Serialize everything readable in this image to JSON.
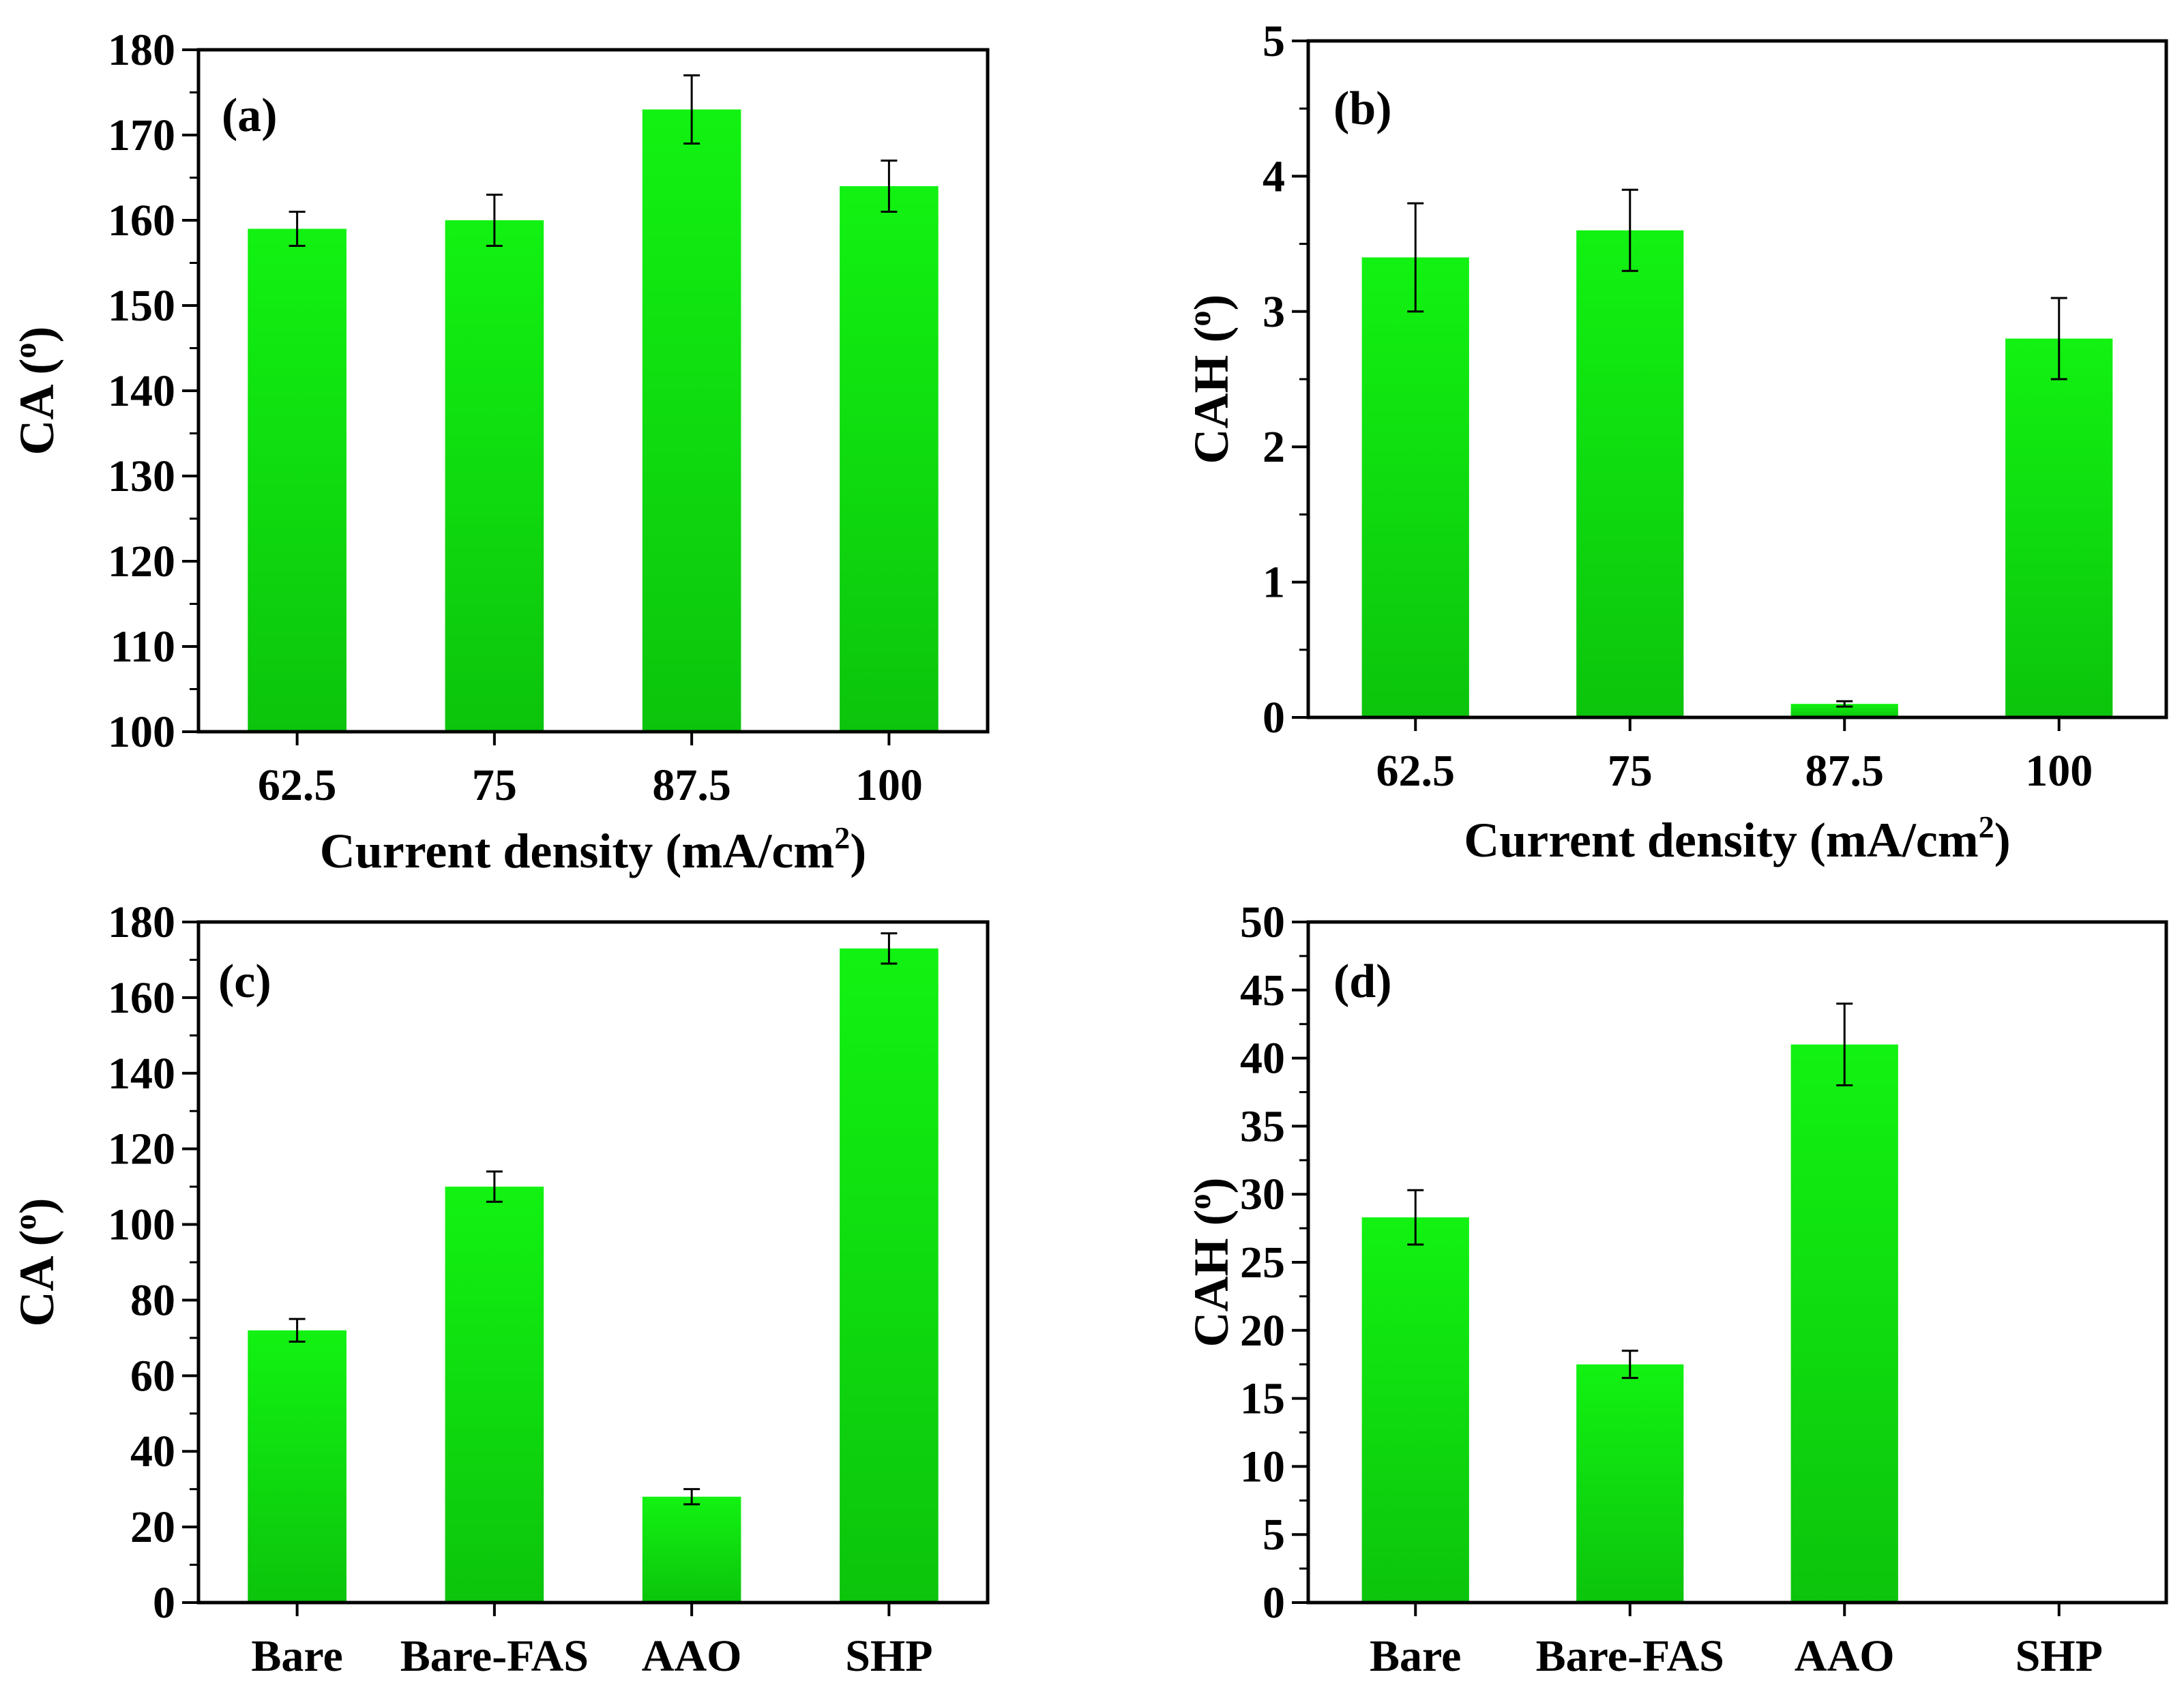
{
  "bar_color": "#12f212",
  "bar_color_dark": "#0cc40c",
  "chart_data": [
    {
      "id": "a",
      "type": "bar",
      "panel_label": "(a)",
      "xlabel": "Current density (mA/cm",
      "xlabel_sup": "2",
      "xlabel_end": ")",
      "ylabel": "CA (",
      "ylabel_sup": "o",
      "ylabel_end": ")",
      "categories": [
        "62.5",
        "75",
        "87.5",
        "100"
      ],
      "values": [
        159,
        160,
        173,
        164
      ],
      "errors": [
        2,
        3,
        4,
        3
      ],
      "ylim": [
        100,
        180
      ],
      "yticks": [
        "100",
        "110",
        "120",
        "130",
        "140",
        "150",
        "160",
        "170",
        "180"
      ],
      "ytick_values": [
        100,
        110,
        120,
        130,
        140,
        150,
        160,
        170,
        180
      ],
      "minor_step": 5
    },
    {
      "id": "b",
      "type": "bar",
      "panel_label": "(b)",
      "xlabel": "Current density (mA/cm",
      "xlabel_sup": "2",
      "xlabel_end": ")",
      "ylabel": "CAH (",
      "ylabel_sup": "o",
      "ylabel_end": ")",
      "categories": [
        "62.5",
        "75",
        "87.5",
        "100"
      ],
      "values": [
        3.4,
        3.6,
        0.1,
        2.8
      ],
      "errors": [
        0.4,
        0.3,
        0.02,
        0.3
      ],
      "ylim": [
        0,
        5
      ],
      "yticks": [
        "0",
        "1",
        "2",
        "3",
        "4",
        "5"
      ],
      "ytick_values": [
        0,
        1,
        2,
        3,
        4,
        5
      ],
      "minor_step": 0.5
    },
    {
      "id": "c",
      "type": "bar",
      "panel_label": "(c)",
      "xlabel": "",
      "xlabel_sup": "",
      "xlabel_end": "",
      "ylabel": "CA (",
      "ylabel_sup": "o",
      "ylabel_end": ")",
      "categories": [
        "Bare",
        "Bare-FAS",
        "AAO",
        "SHP"
      ],
      "values": [
        72,
        110,
        28,
        173
      ],
      "errors": [
        3,
        4,
        2,
        4
      ],
      "ylim": [
        0,
        180
      ],
      "yticks": [
        "0",
        "20",
        "40",
        "60",
        "80",
        "100",
        "120",
        "140",
        "160",
        "180"
      ],
      "ytick_values": [
        0,
        20,
        40,
        60,
        80,
        100,
        120,
        140,
        160,
        180
      ],
      "minor_step": 10
    },
    {
      "id": "d",
      "type": "bar",
      "panel_label": "(d)",
      "xlabel": "",
      "xlabel_sup": "",
      "xlabel_end": "",
      "ylabel": "CAH (",
      "ylabel_sup": "o",
      "ylabel_end": ")",
      "categories": [
        "Bare",
        "Bare-FAS",
        "AAO",
        "SHP"
      ],
      "values": [
        28.3,
        17.5,
        41,
        0
      ],
      "errors": [
        2,
        1,
        3,
        0
      ],
      "ylim": [
        0,
        50
      ],
      "yticks": [
        "0",
        "5",
        "10",
        "15",
        "20",
        "25",
        "30",
        "35",
        "40",
        "45",
        "50"
      ],
      "ytick_values": [
        0,
        5,
        10,
        15,
        20,
        25,
        30,
        35,
        40,
        45,
        50
      ],
      "minor_step": 2.5
    }
  ]
}
